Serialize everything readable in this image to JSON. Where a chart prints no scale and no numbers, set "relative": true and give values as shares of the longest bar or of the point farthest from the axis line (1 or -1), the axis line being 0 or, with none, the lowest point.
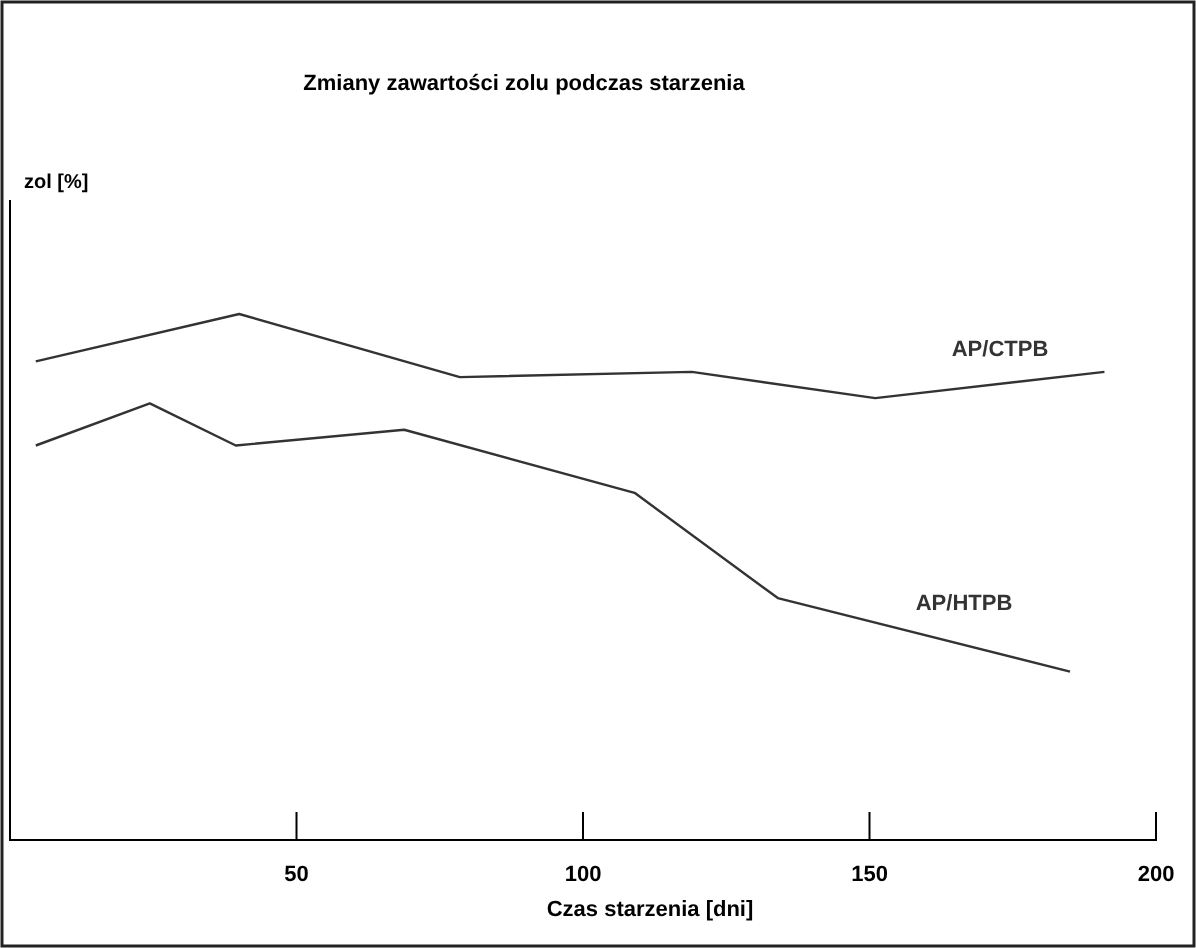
{
  "chart_data": {
    "type": "line",
    "title": "Zmiany zawartości zolu podczas starzenia",
    "xlabel": "Czas starzenia  [dni]",
    "annotations": [
      "zol [%]"
    ],
    "relative": true,
    "xlim": [
      0,
      200
    ],
    "xticks": [
      50,
      100,
      150,
      200
    ],
    "marker": "none",
    "series": [
      {
        "name": "AP/CTPB",
        "color": "#333333",
        "x": [
          4.5,
          40,
          78.5,
          119,
          151,
          191
        ],
        "values": [
          0.91,
          1,
          0.88,
          0.89,
          0.84,
          0.89
        ]
      },
      {
        "name": "AP/HTPB",
        "color": "#333333",
        "x": [
          4.5,
          24.4,
          39.4,
          68.8,
          109,
          134,
          185
        ],
        "values": [
          0.75,
          0.83,
          0.75,
          0.78,
          0.66,
          0.46,
          0.32
        ]
      }
    ]
  }
}
